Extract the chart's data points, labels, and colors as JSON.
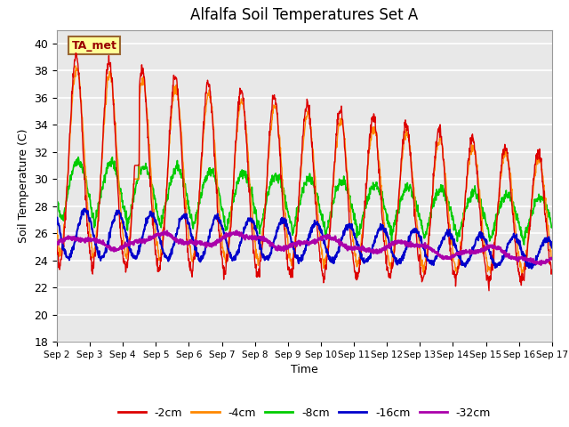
{
  "title": "Alfalfa Soil Temperatures Set A",
  "xlabel": "Time",
  "ylabel": "Soil Temperature (C)",
  "ylim": [
    18,
    41
  ],
  "yticks": [
    18,
    20,
    22,
    24,
    26,
    28,
    30,
    32,
    34,
    36,
    38,
    40
  ],
  "colors": {
    "-2cm": "#dd0000",
    "-4cm": "#ff8800",
    "-8cm": "#00cc00",
    "-16cm": "#0000cc",
    "-32cm": "#aa00aa"
  },
  "annotation": "TA_met",
  "legend_labels": [
    "-2cm",
    "-4cm",
    "-8cm",
    "-16cm",
    "-32cm"
  ],
  "n_days": 15,
  "start_day": 2,
  "background_color": "#ffffff",
  "plot_bg_color": "#e8e8e8"
}
